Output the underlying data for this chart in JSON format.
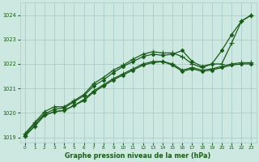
{
  "title": "Graphe pression niveau de la mer (hPa)",
  "background_color": "#cce8e0",
  "grid_color": "#aacccc",
  "line_color": "#1a5c1a",
  "xlim": [
    -0.5,
    23.5
  ],
  "ylim": [
    1018.8,
    1024.5
  ],
  "yticks": [
    1019,
    1020,
    1021,
    1022,
    1023,
    1024
  ],
  "xticks": [
    0,
    1,
    2,
    3,
    4,
    5,
    6,
    7,
    8,
    9,
    10,
    11,
    12,
    13,
    14,
    15,
    16,
    17,
    18,
    19,
    20,
    21,
    22,
    23
  ],
  "series": [
    {
      "x": [
        0,
        1,
        2,
        3,
        4,
        5,
        6,
        7,
        8,
        9,
        10,
        11,
        12,
        13,
        14,
        15,
        16,
        17,
        18,
        19,
        20,
        21,
        22,
        23
      ],
      "y": [
        1019.1,
        1019.55,
        1019.95,
        1020.15,
        1020.2,
        1020.45,
        1020.7,
        1021.1,
        1021.35,
        1021.65,
        1021.9,
        1022.1,
        1022.3,
        1022.4,
        1022.35,
        1022.4,
        1022.55,
        1022.1,
        1021.9,
        1022.0,
        1022.55,
        1023.2,
        1023.75,
        1024.0
      ],
      "marker": "D",
      "markersize": 2.2,
      "linewidth": 0.9
    },
    {
      "x": [
        0,
        1,
        2,
        3,
        4,
        5,
        6,
        7,
        8,
        9,
        10,
        11,
        12,
        13,
        14,
        15,
        16,
        17,
        18,
        19,
        20,
        21,
        22,
        23
      ],
      "y": [
        1019.15,
        1019.6,
        1020.05,
        1020.25,
        1020.25,
        1020.5,
        1020.75,
        1021.2,
        1021.45,
        1021.75,
        1021.95,
        1022.2,
        1022.4,
        1022.5,
        1022.45,
        1022.45,
        1022.3,
        1022.0,
        1021.85,
        1022.0,
        1022.0,
        1022.85,
        1023.75,
        1024.0
      ],
      "marker": "+",
      "markersize": 4.0,
      "linewidth": 0.9
    },
    {
      "x": [
        0,
        1,
        2,
        3,
        4,
        5,
        6,
        7,
        8,
        9,
        10,
        11,
        12,
        13,
        14,
        15,
        16,
        17,
        18,
        19,
        20,
        21,
        22,
        23
      ],
      "y": [
        1019.05,
        1019.45,
        1019.9,
        1020.05,
        1020.1,
        1020.3,
        1020.55,
        1020.9,
        1021.15,
        1021.4,
        1021.6,
        1021.8,
        1022.0,
        1022.1,
        1022.1,
        1022.0,
        1021.75,
        1021.85,
        1021.75,
        1021.8,
        1021.9,
        1022.0,
        1022.05,
        1022.05
      ],
      "marker": "+",
      "markersize": 4.0,
      "linewidth": 0.9
    },
    {
      "x": [
        0,
        1,
        2,
        3,
        4,
        5,
        6,
        7,
        8,
        9,
        10,
        11,
        12,
        13,
        14,
        15,
        16,
        17,
        18,
        19,
        20,
        21,
        22,
        23
      ],
      "y": [
        1019.05,
        1019.45,
        1019.9,
        1020.05,
        1020.1,
        1020.3,
        1020.5,
        1020.85,
        1021.1,
        1021.35,
        1021.55,
        1021.75,
        1021.95,
        1022.05,
        1022.1,
        1021.95,
        1021.7,
        1021.8,
        1021.7,
        1021.75,
        1021.85,
        1021.95,
        1022.0,
        1022.0
      ],
      "marker": "D",
      "markersize": 2.2,
      "linewidth": 0.9
    }
  ]
}
